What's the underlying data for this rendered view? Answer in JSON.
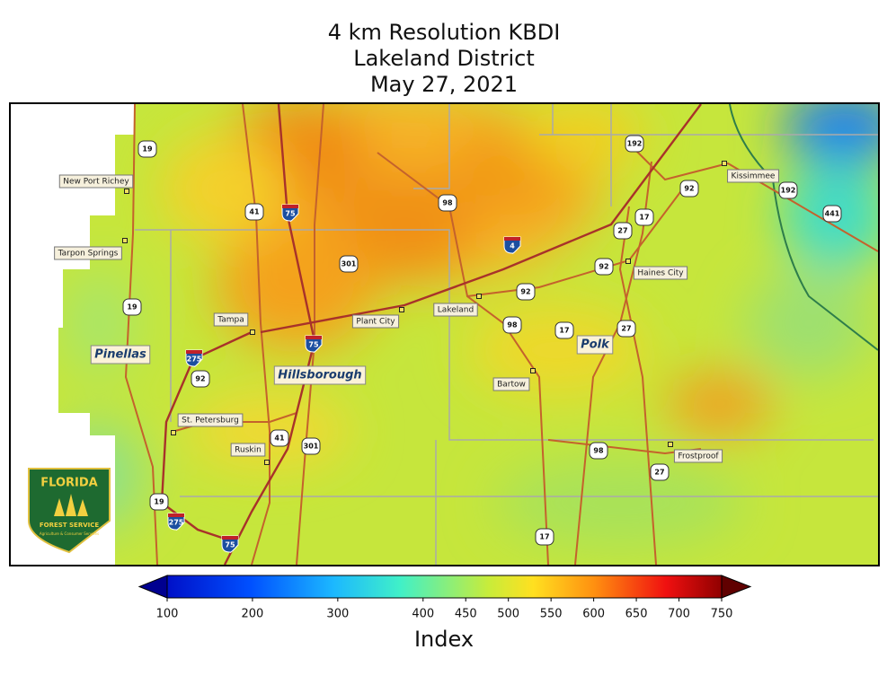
{
  "title": [
    "4 km Resolution KBDI",
    "Lakeland District",
    "May 27, 2021"
  ],
  "map": {
    "places": [
      "New Port Richey",
      "Tarpon Springs",
      "Tampa",
      "Plant City",
      "Lakeland",
      "Haines City",
      "Kissimmee",
      "Bartow",
      "St. Petersburg",
      "Ruskin",
      "Frostproof"
    ],
    "counties": [
      "Pinellas",
      "Hillsborough",
      "Polk"
    ],
    "routes": [
      "19",
      "41",
      "75",
      "98",
      "192",
      "92",
      "192",
      "441",
      "4",
      "27",
      "17",
      "92",
      "301",
      "92",
      "19",
      "98",
      "17",
      "27",
      "75",
      "275",
      "92",
      "41",
      "301",
      "98",
      "27",
      "19",
      "275",
      "75",
      "17"
    ]
  },
  "logo": {
    "name": "FLORIDA",
    "agency": "FOREST SERVICE",
    "department": "Agriculture & Consumer Services"
  },
  "colorbar": {
    "label": "Index",
    "xlim": [
      100,
      750
    ],
    "xticks": [
      100,
      200,
      300,
      400,
      450,
      500,
      550,
      600,
      650,
      700,
      750
    ]
  }
}
